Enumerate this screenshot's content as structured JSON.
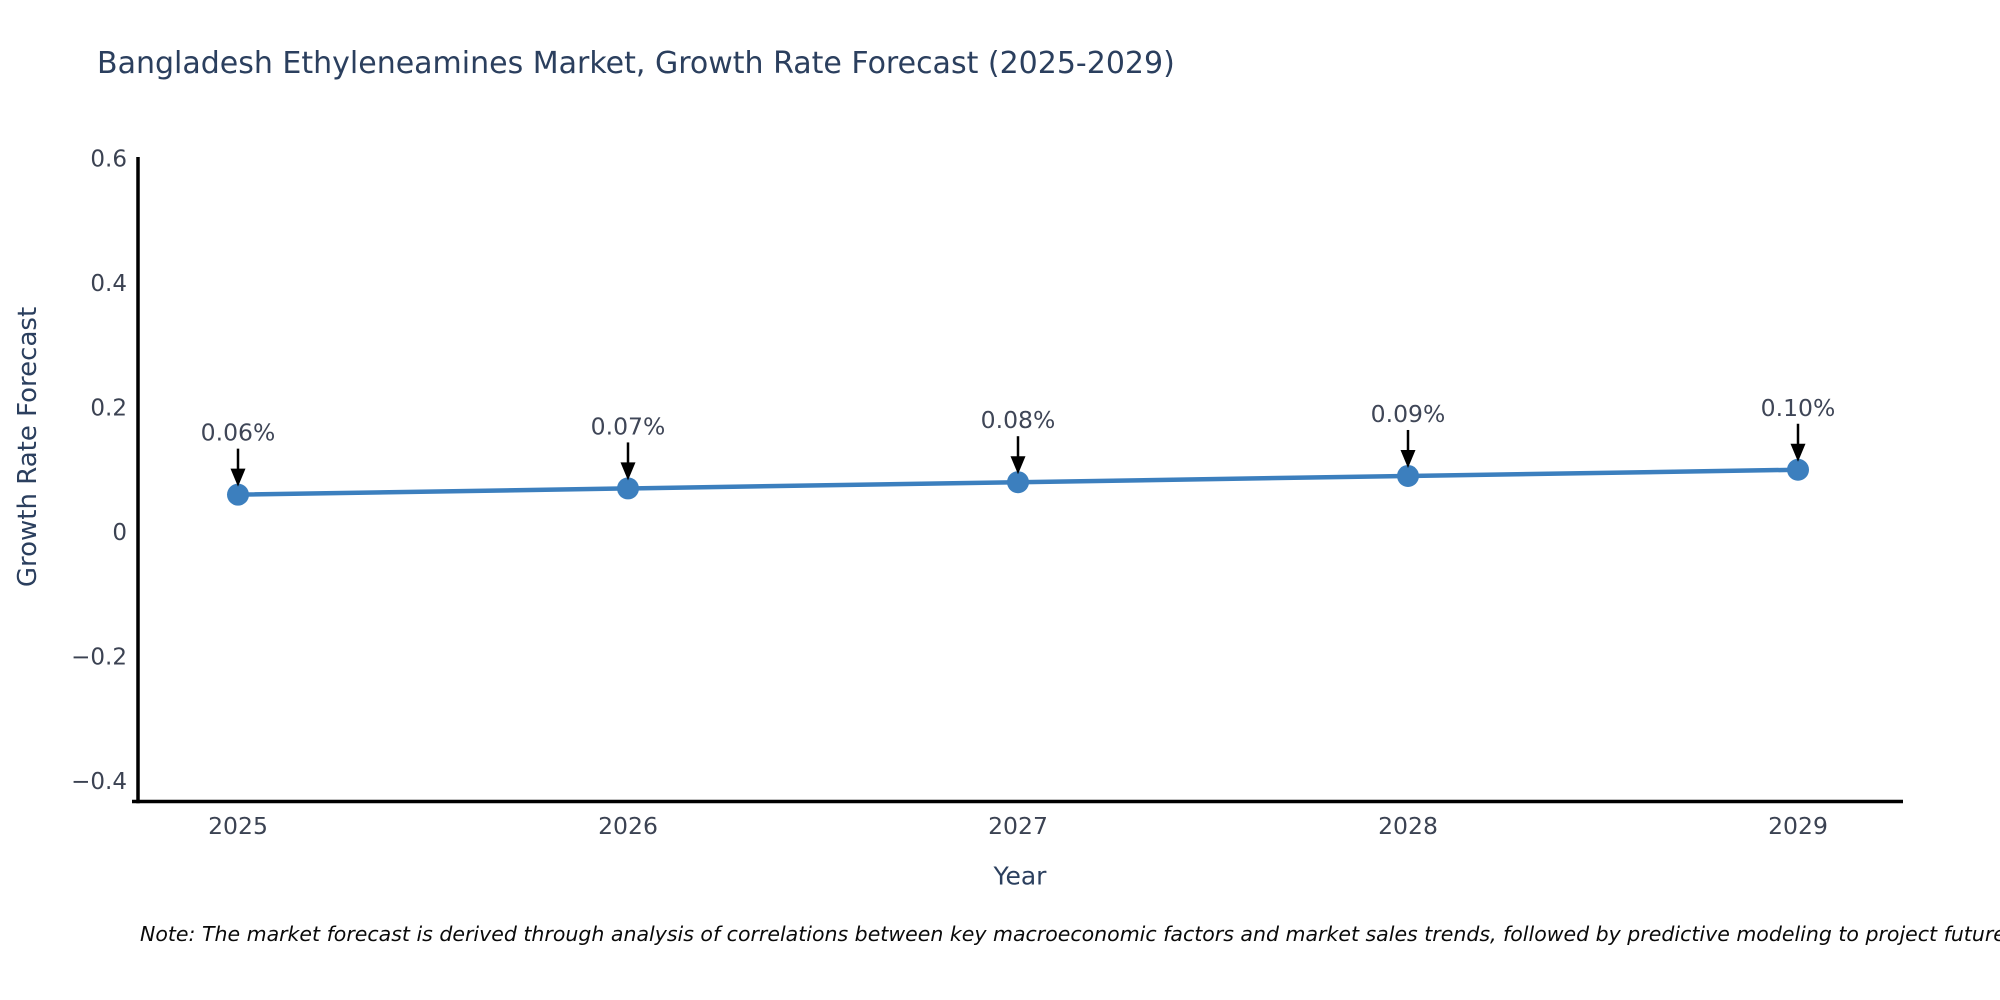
{
  "title": "Bangladesh Ethyleneamines Market, Growth Rate Forecast (2025-2029)",
  "note": "Note: The market forecast is derived through analysis of correlations between key macroeconomic factors and market sales trends, followed by predictive modeling to project future sa",
  "chart_data": {
    "type": "line",
    "title": "Bangladesh Ethyleneamines Market, Growth Rate Forecast (2025-2029)",
    "xlabel": "Year",
    "ylabel": "Growth Rate Forecast",
    "x": [
      2025,
      2026,
      2027,
      2028,
      2029
    ],
    "x_tick_labels": [
      "2025",
      "2026",
      "2027",
      "2028",
      "2029"
    ],
    "values": [
      0.06,
      0.07,
      0.08,
      0.09,
      0.1
    ],
    "point_labels": [
      "0.06%",
      "0.07%",
      "0.08%",
      "0.09%",
      "0.10%"
    ],
    "y_ticks": [
      0.6,
      0.4,
      0.2,
      0,
      -0.2,
      -0.4
    ],
    "y_tick_labels": [
      "0.6",
      "0.4",
      "0.2",
      "0",
      "−0.2",
      "−0.4"
    ],
    "ylim": [
      -0.43,
      0.6
    ],
    "xlim": [
      2024.73,
      2029.27
    ],
    "grid": false,
    "legend": "none",
    "annotation_style": "text-above-black-arrow-pointing-down-to-marker",
    "colors": {
      "line": "#3c7fbe",
      "marker": "#3c7fbe",
      "axis": "#000000",
      "title_text": "#2b3f5e",
      "tick_text": "#3b4252",
      "annotation_text": "#3f4657",
      "arrow": "#000000",
      "background": "#ffffff"
    }
  }
}
